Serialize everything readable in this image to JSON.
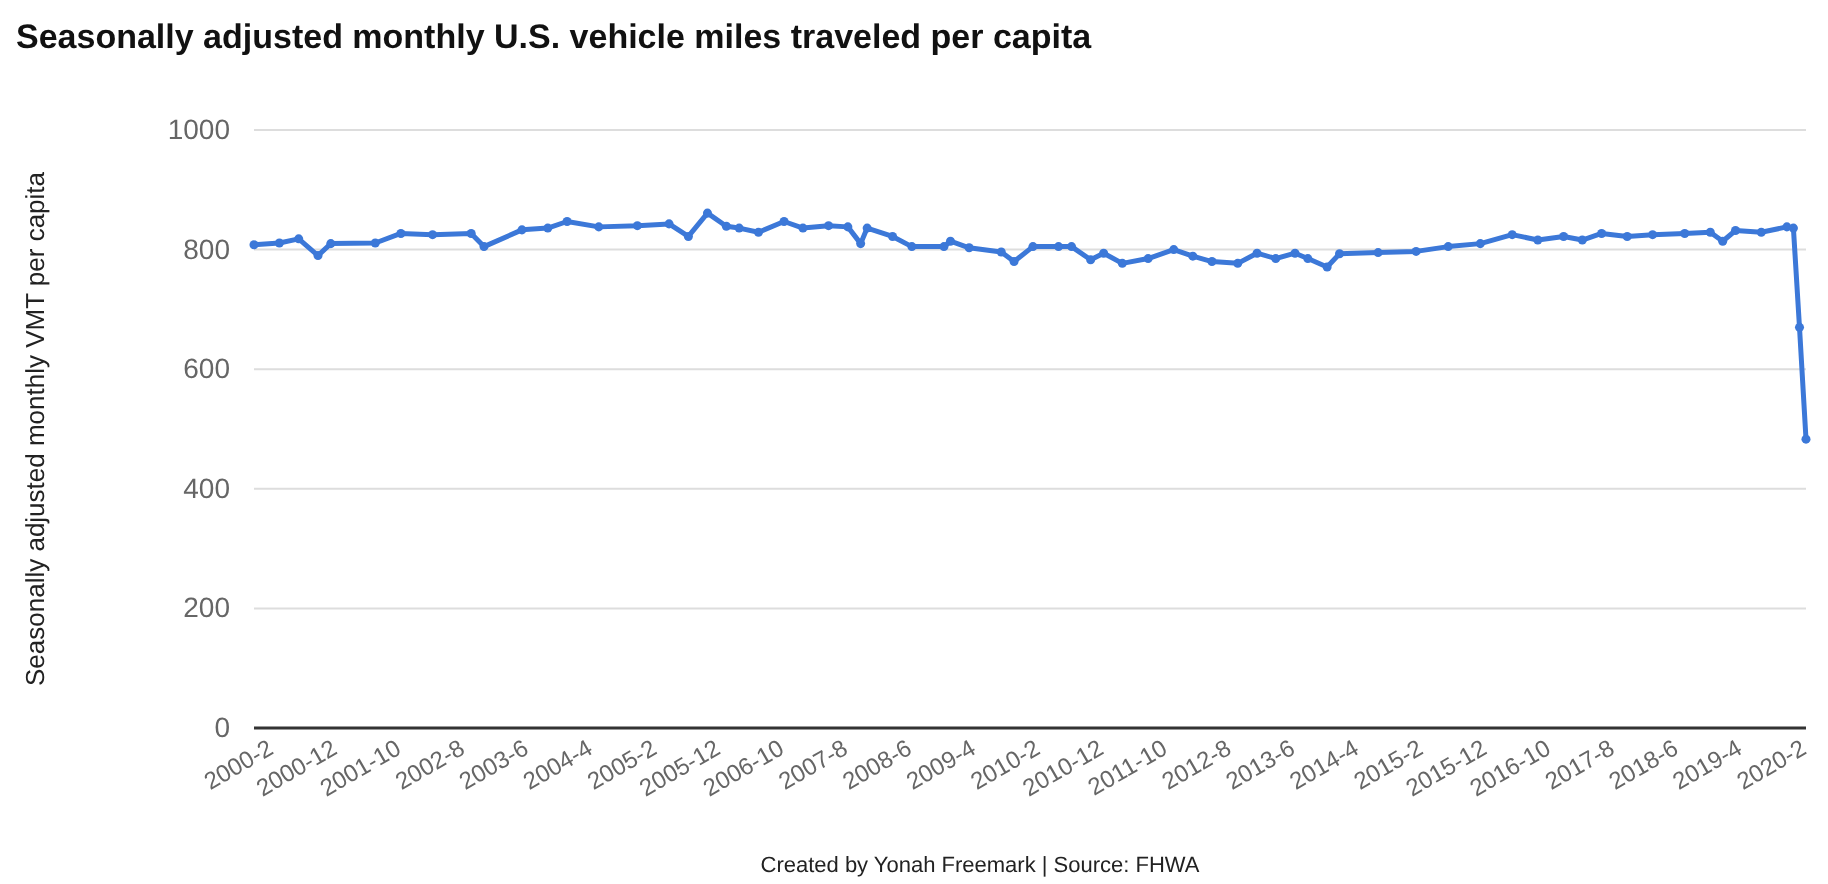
{
  "chart_data": {
    "type": "line",
    "title": "Seasonally adjusted monthly U.S. vehicle miles traveled per capita",
    "ylabel": "Seasonally adjusted monthly VMT per capita",
    "annotations": [
      "Created by Yonah Freemark | Source: FHWA"
    ],
    "x": [
      "2000-01",
      "2000-05",
      "2000-08",
      "2000-11",
      "2001-01",
      "2001-08",
      "2001-12",
      "2002-05",
      "2002-11",
      "2003-01",
      "2003-07",
      "2003-11",
      "2004-02",
      "2004-07",
      "2005-01",
      "2005-06",
      "2005-09",
      "2005-12",
      "2006-03",
      "2006-05",
      "2006-08",
      "2006-12",
      "2007-03",
      "2007-07",
      "2007-10",
      "2007-12",
      "2008-01",
      "2008-05",
      "2008-08",
      "2009-01",
      "2009-02",
      "2009-05",
      "2009-10",
      "2009-12",
      "2010-03",
      "2010-07",
      "2010-09",
      "2010-12",
      "2011-02",
      "2011-05",
      "2011-09",
      "2012-01",
      "2012-04",
      "2012-07",
      "2012-11",
      "2013-02",
      "2013-05",
      "2013-08",
      "2013-10",
      "2014-01",
      "2014-03",
      "2014-09",
      "2015-03",
      "2015-08",
      "2016-01",
      "2016-06",
      "2016-10",
      "2017-02",
      "2017-05",
      "2017-08",
      "2017-12",
      "2018-04",
      "2018-09",
      "2019-01",
      "2019-03",
      "2019-05",
      "2019-09",
      "2020-01",
      "2020-02",
      "2020-03",
      "2020-04"
    ],
    "series": [
      {
        "color": "#3c78d8",
        "values": [
          808,
          811,
          818,
          790,
          810,
          811,
          827,
          825,
          827,
          805,
          833,
          836,
          847,
          838,
          840,
          843,
          822,
          861,
          839,
          836,
          829,
          847,
          836,
          840,
          838,
          810,
          836,
          822,
          805,
          805,
          814,
          803,
          796,
          780,
          805,
          805,
          805,
          783,
          794,
          777,
          785,
          800,
          789,
          780,
          777,
          794,
          785,
          794,
          785,
          771,
          793,
          795,
          797,
          805,
          810,
          825,
          816,
          822,
          816,
          827,
          822,
          825,
          827,
          829,
          814,
          832,
          829,
          838,
          836,
          670,
          483
        ]
      }
    ],
    "xlim": [
      "2000-01",
      "2020-04"
    ],
    "xticks": [
      {
        "value": "2000-02",
        "label": "2000-2"
      },
      {
        "value": "2000-12",
        "label": "2000-12"
      },
      {
        "value": "2001-10",
        "label": "2001-10"
      },
      {
        "value": "2002-08",
        "label": "2002-8"
      },
      {
        "value": "2003-06",
        "label": "2003-6"
      },
      {
        "value": "2004-04",
        "label": "2004-4"
      },
      {
        "value": "2005-02",
        "label": "2005-2"
      },
      {
        "value": "2005-12",
        "label": "2005-12"
      },
      {
        "value": "2006-10",
        "label": "2006-10"
      },
      {
        "value": "2007-08",
        "label": "2007-8"
      },
      {
        "value": "2008-06",
        "label": "2008-6"
      },
      {
        "value": "2009-04",
        "label": "2009-4"
      },
      {
        "value": "2010-02",
        "label": "2010-2"
      },
      {
        "value": "2010-12",
        "label": "2010-12"
      },
      {
        "value": "2011-10",
        "label": "2011-10"
      },
      {
        "value": "2012-08",
        "label": "2012-8"
      },
      {
        "value": "2013-06",
        "label": "2013-6"
      },
      {
        "value": "2014-04",
        "label": "2014-4"
      },
      {
        "value": "2015-02",
        "label": "2015-2"
      },
      {
        "value": "2015-12",
        "label": "2015-12"
      },
      {
        "value": "2016-10",
        "label": "2016-10"
      },
      {
        "value": "2017-08",
        "label": "2017-8"
      },
      {
        "value": "2018-06",
        "label": "2018-6"
      },
      {
        "value": "2019-04",
        "label": "2019-4"
      },
      {
        "value": "2020-02",
        "label": "2020-2"
      }
    ],
    "ylim": [
      0,
      1000
    ],
    "yticks": [
      0,
      200,
      400,
      600,
      800,
      1000
    ],
    "grid": "y",
    "marker": "circle",
    "line_style": "solid"
  }
}
